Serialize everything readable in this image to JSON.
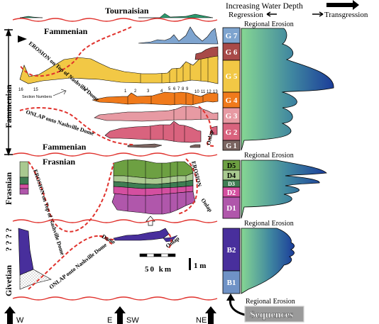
{
  "legend": {
    "depth_title": "Increasing Water Depth",
    "regression": "Regression",
    "transgression": "Transgression"
  },
  "stages": {
    "tournaisian": "Tournaisian",
    "fammenian_top": "Fammenian",
    "fammenian_bottom": "Fammenian",
    "frasnian": "Frasnian",
    "fammenian_vertical": "Fammenian",
    "frasnian_vertical": "Frasnian",
    "givetian_vertical": "Givetian",
    "question_marks": "? ? ? ?"
  },
  "annotations": {
    "erosion_upper": "EROSION on Top of Nashville Dome",
    "onlap_fammenian": "ONLAP onto Nashville Dome",
    "onlap_right_upper": "Onlap",
    "erosion_middle": "EROSION on Top of Nashville Dome",
    "erosion_right_mid": "EROSION",
    "onlap_right_mid": "Onlap",
    "dome_label": "Dome",
    "onlap_lower": "ONLAP onto Nashville Dome",
    "onlap_lower_right": "Onlap",
    "section_numbers": "Section Numbers"
  },
  "section_numbers": [
    "16",
    "15",
    "14",
    "1",
    "2",
    "3",
    "4",
    "5",
    "6",
    "7",
    "8",
    "9",
    "10",
    "11",
    "12",
    "13"
  ],
  "sequences": {
    "title": "Sequences",
    "labels": [
      "G 7",
      "G 6",
      "G 5",
      "G 4",
      "G 3",
      "G 2",
      "G 1",
      "D5",
      "D4",
      "D3",
      "D2",
      "D1",
      "B2",
      "B1"
    ],
    "regional_erosion": [
      "Regional Erosion",
      "Regional Erosion",
      "Regional Erosion",
      "Regional Erosion"
    ]
  },
  "scale": {
    "horizontal": "50 km",
    "vertical": "1 m"
  },
  "directions": {
    "w": "W",
    "e": "E",
    "sw": "SW",
    "ne": "NE"
  },
  "colors": {
    "G7": "#7ea4cf",
    "G6": "#a84a48",
    "G5": "#f2c845",
    "G4": "#f07a1b",
    "G3": "#e79aa3",
    "G2": "#d9637e",
    "G1": "#7b6561",
    "D5": "#6da042",
    "D4": "#a9c990",
    "D3": "#3f7d53",
    "D2": "#d44fa0",
    "D1": "#b057ab",
    "B2": "#482f9c",
    "B1": "#6f92c6",
    "boundary": "#e0322d",
    "tournaisian": "#2c9a6e",
    "gradient_left": "#7ed090",
    "gradient_right": "#1d3f9b"
  }
}
